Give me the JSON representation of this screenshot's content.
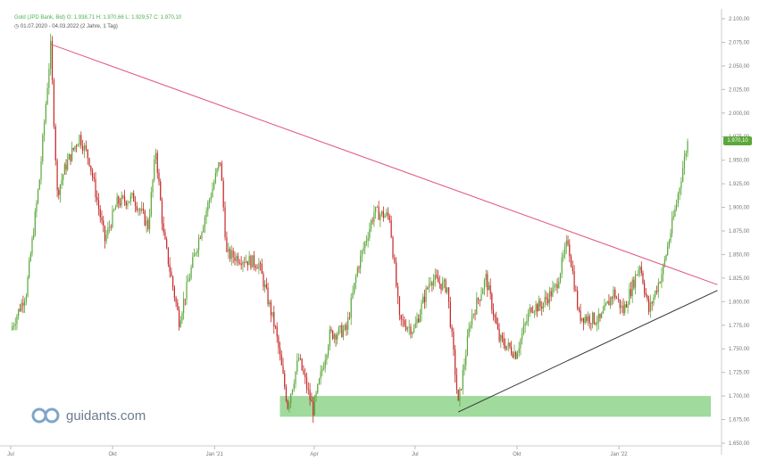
{
  "header": {
    "ohlc_line": "Gold (JPD Bank, Bid)  O: 1.938,71  H: 1.970,66  L: 1.929,57  C: 1.970,10",
    "range_line": "01.07.2020 - 04.03.2022  (2 Jahre, 1 Tag)"
  },
  "branding": {
    "logo_text": "guidants.com"
  },
  "last_price": {
    "label": "1.970,10",
    "value": 1970.1,
    "color": "#5aa83a"
  },
  "icons": {
    "clock": "clock-icon",
    "logo": "guidants-logo-icon"
  },
  "colors": {
    "up": "#5aa83a",
    "down": "#c62828",
    "resistance": "#e0587a",
    "support": "#333333",
    "zone": "#8fd48c"
  },
  "chart_data": {
    "type": "candlestick",
    "title": "Gold (JPD Bank, Bid)",
    "x_range": [
      "2020-07-01",
      "2022-03-04"
    ],
    "ylim": [
      1650,
      2100
    ],
    "y_ticks": [
      2100,
      2075,
      2050,
      2025,
      2000,
      1975,
      1950,
      1925,
      1900,
      1875,
      1850,
      1825,
      1800,
      1775,
      1750,
      1725,
      1700,
      1675,
      1650
    ],
    "y_tick_labels": [
      "2.100,00",
      "2.075,00",
      "2.050,00",
      "2.025,00",
      "2.000,00",
      "1.975,00",
      "1.950,00",
      "1.925,00",
      "1.900,00",
      "1.875,00",
      "1.850,00",
      "1.825,00",
      "1.800,00",
      "1.775,00",
      "1.750,00",
      "1.725,00",
      "1.700,00",
      "1.675,00",
      "1.650,00"
    ],
    "x_ticks": [
      {
        "label": "Jul",
        "date": "2020-07-01"
      },
      {
        "label": "Okt",
        "date": "2020-10-01"
      },
      {
        "label": "Jan '21",
        "date": "2021-01-01"
      },
      {
        "label": "Apr",
        "date": "2021-04-01"
      },
      {
        "label": "Jul",
        "date": "2021-07-01"
      },
      {
        "label": "Okt",
        "date": "2021-10-01"
      },
      {
        "label": "Jan '22",
        "date": "2022-01-01"
      }
    ],
    "price_path": [
      [
        "2020-07-01",
        1770
      ],
      [
        "2020-07-15",
        1810
      ],
      [
        "2020-07-27",
        1930
      ],
      [
        "2020-08-06",
        2070
      ],
      [
        "2020-08-12",
        1915
      ],
      [
        "2020-08-20",
        1945
      ],
      [
        "2020-09-01",
        1975
      ],
      [
        "2020-09-10",
        1950
      ],
      [
        "2020-09-24",
        1865
      ],
      [
        "2020-10-05",
        1905
      ],
      [
        "2020-10-20",
        1910
      ],
      [
        "2020-11-02",
        1880
      ],
      [
        "2020-11-09",
        1960
      ],
      [
        "2020-11-16",
        1870
      ],
      [
        "2020-11-30",
        1780
      ],
      [
        "2020-12-15",
        1855
      ],
      [
        "2021-01-06",
        1950
      ],
      [
        "2021-01-12",
        1850
      ],
      [
        "2021-01-28",
        1845
      ],
      [
        "2021-02-10",
        1840
      ],
      [
        "2021-02-25",
        1770
      ],
      [
        "2021-03-08",
        1690
      ],
      [
        "2021-03-18",
        1740
      ],
      [
        "2021-03-31",
        1685
      ],
      [
        "2021-04-15",
        1765
      ],
      [
        "2021-04-30",
        1770
      ],
      [
        "2021-05-10",
        1835
      ],
      [
        "2021-05-25",
        1895
      ],
      [
        "2021-06-08",
        1890
      ],
      [
        "2021-06-17",
        1780
      ],
      [
        "2021-06-30",
        1770
      ],
      [
        "2021-07-15",
        1825
      ],
      [
        "2021-07-30",
        1815
      ],
      [
        "2021-08-09",
        1690
      ],
      [
        "2021-08-20",
        1780
      ],
      [
        "2021-09-03",
        1825
      ],
      [
        "2021-09-15",
        1760
      ],
      [
        "2021-09-30",
        1745
      ],
      [
        "2021-10-14",
        1795
      ],
      [
        "2021-10-22",
        1795
      ],
      [
        "2021-11-05",
        1815
      ],
      [
        "2021-11-16",
        1865
      ],
      [
        "2021-11-26",
        1785
      ],
      [
        "2021-12-15",
        1780
      ],
      [
        "2021-12-27",
        1810
      ],
      [
        "2022-01-05",
        1790
      ],
      [
        "2022-01-20",
        1840
      ],
      [
        "2022-01-28",
        1790
      ],
      [
        "2022-02-10",
        1835
      ],
      [
        "2022-02-22",
        1905
      ],
      [
        "2022-03-04",
        1970
      ]
    ],
    "annotations": {
      "resistance_line": {
        "from": [
          "2020-08-06",
          2073
        ],
        "to": [
          "2022-03-31",
          1818
        ]
      },
      "support_line": {
        "from": [
          "2021-08-09",
          1683
        ],
        "to": [
          "2022-03-31",
          1812
        ]
      },
      "support_zone": {
        "from": "2021-03-01",
        "to": "2022-03-25",
        "low": 1678,
        "high": 1700
      }
    },
    "grid": false,
    "legend": "none"
  }
}
